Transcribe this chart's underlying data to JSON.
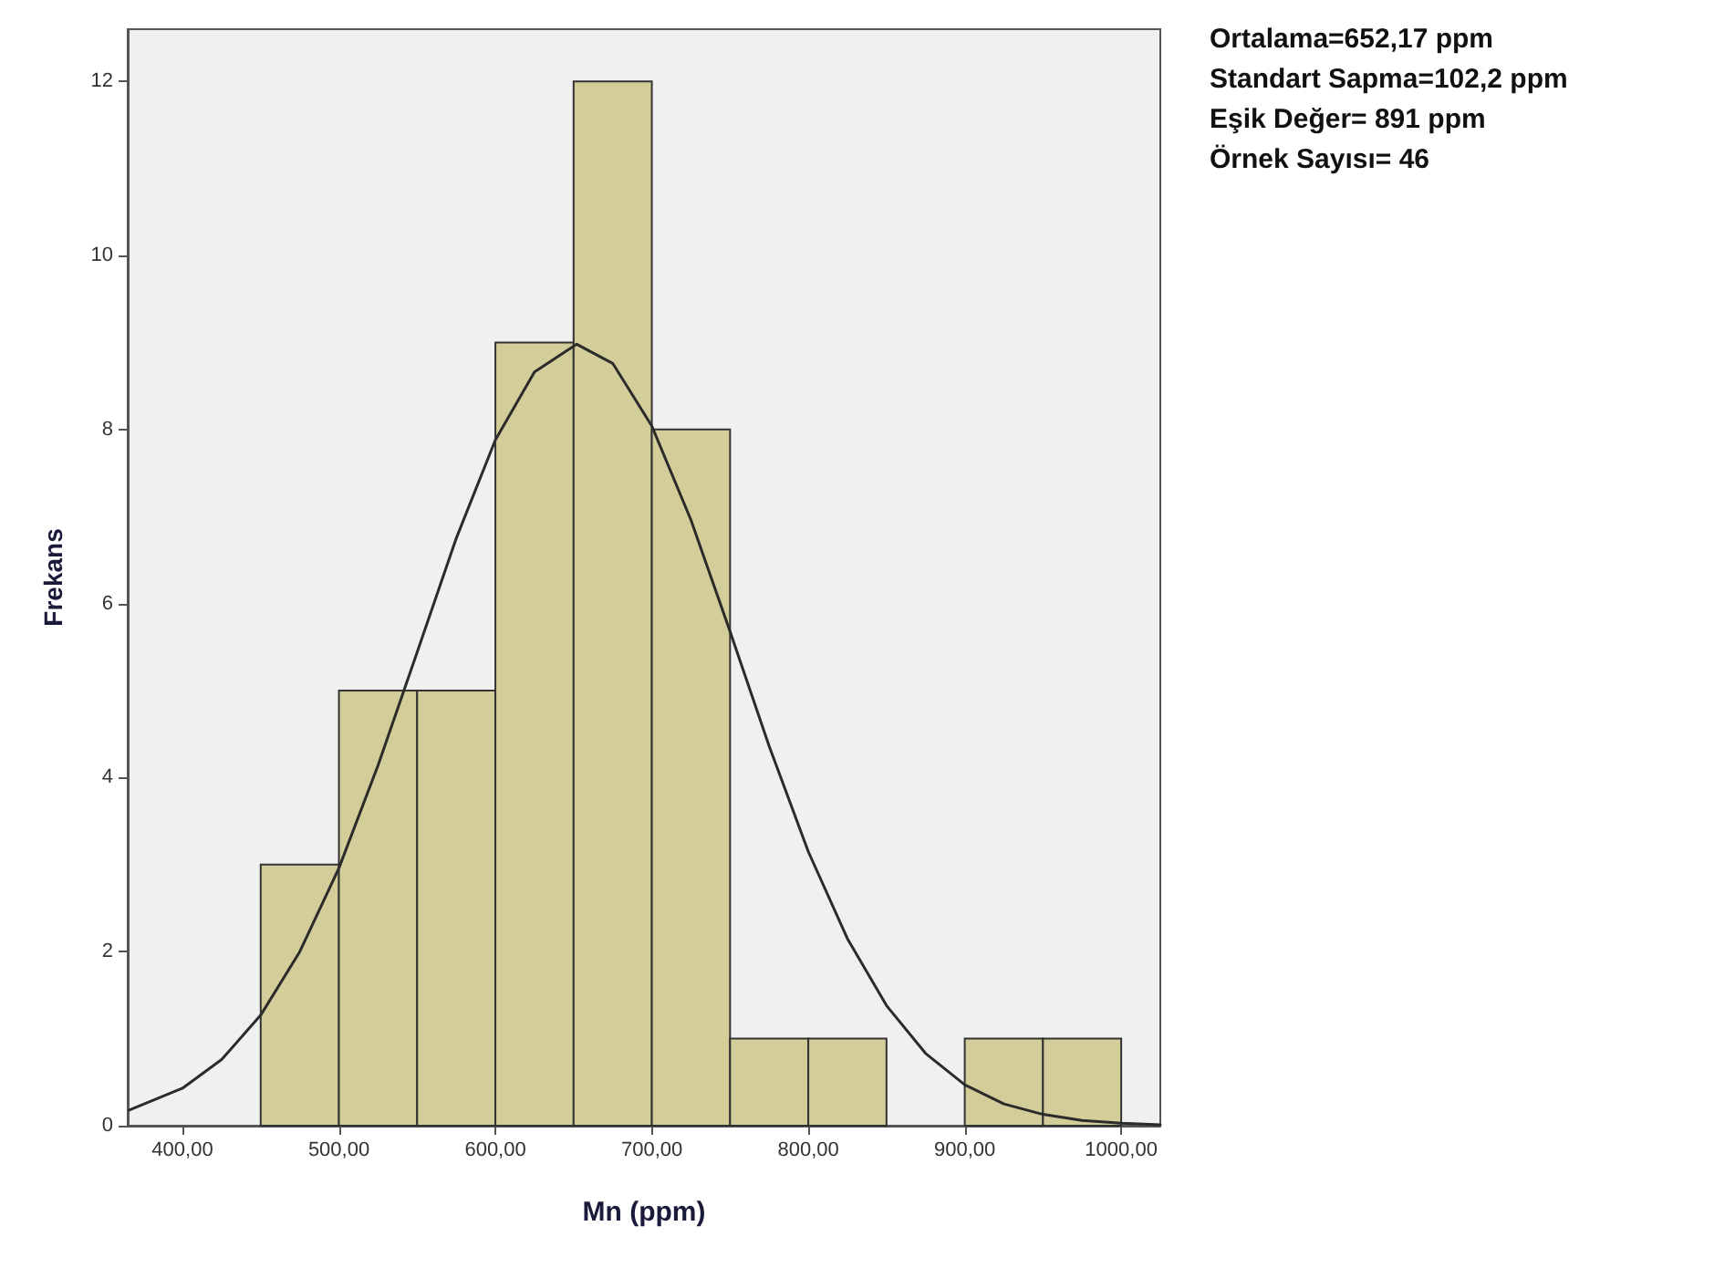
{
  "chart_data": {
    "type": "histogram",
    "xlabel": "Mn (ppm)",
    "ylabel": "Frekans",
    "annotations": [
      "Ortalama=652,17 ppm",
      "Standart Sapma=102,2 ppm",
      "Eşik Değer= 891 ppm",
      "Örnek Sayısı= 46"
    ],
    "bins": [
      450,
      500,
      550,
      600,
      650,
      700,
      750,
      800,
      850,
      900,
      950,
      1000
    ],
    "values": [
      3,
      5,
      5,
      9,
      12,
      8,
      1,
      1,
      0,
      1,
      1
    ],
    "color": "#d3ce99",
    "series": [
      {
        "type": "line",
        "color": "#2b2b2b",
        "x": [
          366,
          400,
          425,
          450,
          475,
          500,
          525,
          550,
          575,
          600,
          625,
          652,
          675,
          700,
          725,
          750,
          775,
          800,
          825,
          850,
          875,
          900,
          925,
          950,
          975,
          1000,
          1025
        ],
        "values": [
          0.18,
          0.43,
          0.76,
          1.27,
          2.0,
          2.96,
          4.14,
          5.44,
          6.75,
          7.88,
          8.66,
          8.98,
          8.76,
          8.04,
          6.96,
          5.68,
          4.36,
          3.15,
          2.15,
          1.38,
          0.83,
          0.47,
          0.25,
          0.13,
          0.06,
          0.03,
          0.01
        ]
      }
    ],
    "marker": "none",
    "grid": false,
    "xlim": [
      365,
      1025
    ],
    "xticks": [
      {
        "value": 400,
        "label": "400,00"
      },
      {
        "value": 500,
        "label": "500,00"
      },
      {
        "value": 600,
        "label": "600,00"
      },
      {
        "value": 700,
        "label": "700,00"
      },
      {
        "value": 800,
        "label": "800,00"
      },
      {
        "value": 900,
        "label": "900,00"
      },
      {
        "value": 1000,
        "label": "1000,00"
      }
    ],
    "ylim": [
      0,
      12.6
    ],
    "yticks": [
      0,
      2,
      4,
      6,
      8,
      10,
      12
    ]
  }
}
